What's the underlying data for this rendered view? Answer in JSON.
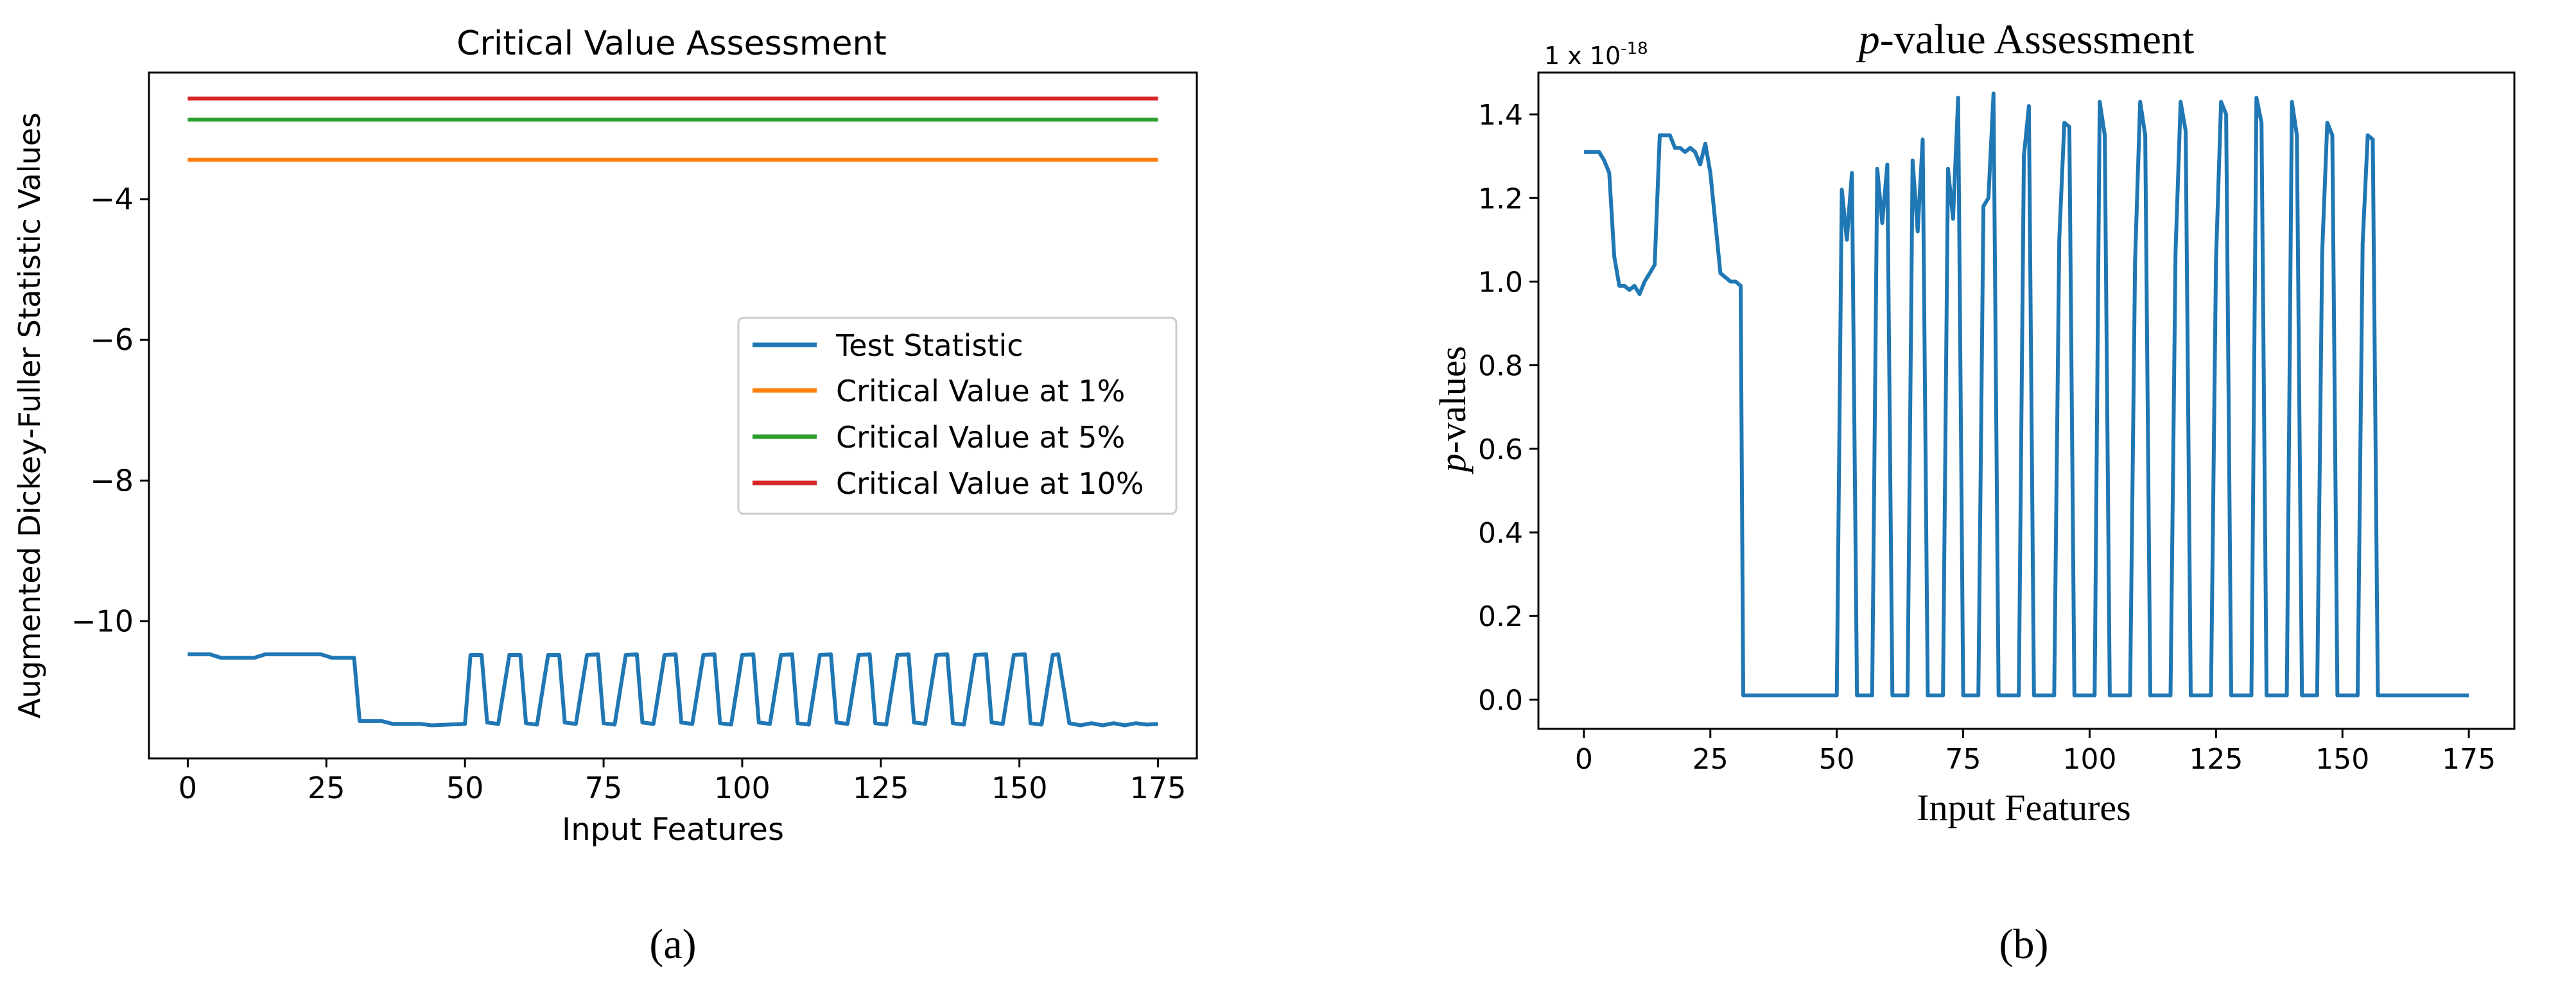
{
  "chart_data": [
    {
      "type": "line",
      "panel_label": "(a)",
      "title": "Critical Value Assessment",
      "xlabel": "Input Features",
      "ylabel": "Augmented Dickey-Fuller Statistic Values",
      "xlim": [
        -7,
        182
      ],
      "ylim": [
        -11.95,
        -2.2
      ],
      "xticks": [
        0,
        25,
        50,
        75,
        100,
        125,
        150,
        175
      ],
      "yticks": [
        -10,
        -8,
        -6,
        -4
      ],
      "xtick_labels": [
        "0",
        "25",
        "50",
        "75",
        "100",
        "125",
        "150",
        "175"
      ],
      "ytick_labels": [
        "−10",
        "−8",
        "−6",
        "−4"
      ],
      "legend_position": "center-right",
      "series": [
        {
          "name": "Test Statistic",
          "color": "#1f77b4",
          "points": [
            [
              0,
              -10.47
            ],
            [
              4,
              -10.47
            ],
            [
              6,
              -10.52
            ],
            [
              12,
              -10.52
            ],
            [
              14,
              -10.47
            ],
            [
              24,
              -10.47
            ],
            [
              26,
              -10.52
            ],
            [
              30,
              -10.52
            ],
            [
              31,
              -11.42
            ],
            [
              35,
              -11.42
            ],
            [
              37,
              -11.46
            ],
            [
              42,
              -11.46
            ],
            [
              44,
              -11.48
            ],
            [
              50,
              -11.46
            ],
            [
              51,
              -10.48
            ],
            [
              53,
              -10.48
            ],
            [
              54,
              -11.44
            ],
            [
              56,
              -11.46
            ],
            [
              58,
              -10.48
            ],
            [
              60,
              -10.48
            ],
            [
              61,
              -11.45
            ],
            [
              63,
              -11.47
            ],
            [
              65,
              -10.48
            ],
            [
              67,
              -10.48
            ],
            [
              68,
              -11.44
            ],
            [
              70,
              -11.46
            ],
            [
              72,
              -10.48
            ],
            [
              74,
              -10.47
            ],
            [
              75,
              -11.45
            ],
            [
              77,
              -11.47
            ],
            [
              79,
              -10.48
            ],
            [
              81,
              -10.47
            ],
            [
              82,
              -11.44
            ],
            [
              84,
              -11.46
            ],
            [
              86,
              -10.48
            ],
            [
              88,
              -10.47
            ],
            [
              89,
              -11.44
            ],
            [
              91,
              -11.46
            ],
            [
              93,
              -10.48
            ],
            [
              95,
              -10.47
            ],
            [
              96,
              -11.45
            ],
            [
              98,
              -11.47
            ],
            [
              100,
              -10.48
            ],
            [
              102,
              -10.47
            ],
            [
              103,
              -11.44
            ],
            [
              105,
              -11.46
            ],
            [
              107,
              -10.48
            ],
            [
              109,
              -10.47
            ],
            [
              110,
              -11.45
            ],
            [
              112,
              -11.47
            ],
            [
              114,
              -10.48
            ],
            [
              116,
              -10.47
            ],
            [
              117,
              -11.44
            ],
            [
              119,
              -11.46
            ],
            [
              121,
              -10.48
            ],
            [
              123,
              -10.47
            ],
            [
              124,
              -11.45
            ],
            [
              126,
              -11.47
            ],
            [
              128,
              -10.48
            ],
            [
              130,
              -10.47
            ],
            [
              131,
              -11.44
            ],
            [
              133,
              -11.46
            ],
            [
              135,
              -10.48
            ],
            [
              137,
              -10.47
            ],
            [
              138,
              -11.45
            ],
            [
              140,
              -11.47
            ],
            [
              142,
              -10.48
            ],
            [
              144,
              -10.47
            ],
            [
              145,
              -11.44
            ],
            [
              147,
              -11.46
            ],
            [
              149,
              -10.48
            ],
            [
              151,
              -10.47
            ],
            [
              152,
              -11.45
            ],
            [
              154,
              -11.47
            ],
            [
              156,
              -10.48
            ],
            [
              157,
              -10.47
            ],
            [
              159,
              -11.45
            ],
            [
              161,
              -11.48
            ],
            [
              163,
              -11.45
            ],
            [
              165,
              -11.48
            ],
            [
              167,
              -11.45
            ],
            [
              169,
              -11.48
            ],
            [
              171,
              -11.45
            ],
            [
              173,
              -11.47
            ],
            [
              175,
              -11.46
            ]
          ]
        },
        {
          "name": "Critical Value at 1%",
          "color": "#ff7f0e",
          "points": [
            [
              0,
              -3.44
            ],
            [
              175,
              -3.44
            ]
          ]
        },
        {
          "name": "Critical Value at 5%",
          "color": "#2ca02c",
          "points": [
            [
              0,
              -2.87
            ],
            [
              175,
              -2.87
            ]
          ]
        },
        {
          "name": "Critical Value at 10%",
          "color": "#d62728",
          "points": [
            [
              0,
              -2.57
            ],
            [
              175,
              -2.57
            ]
          ]
        }
      ]
    },
    {
      "type": "line",
      "panel_label": "(b)",
      "title_italic": "p",
      "title_rest": "-value Assessment",
      "scale_label": "1 x 10",
      "scale_exponent": "-18",
      "xlabel": "Input Features",
      "ylabel_italic": "p",
      "ylabel_rest": "-values",
      "xlim": [
        -9,
        184
      ],
      "ylim": [
        -0.07,
        1.5
      ],
      "xticks": [
        0,
        25,
        50,
        75,
        100,
        125,
        150,
        175
      ],
      "yticks": [
        0.0,
        0.2,
        0.4,
        0.6,
        0.8,
        1.0,
        1.2,
        1.4
      ],
      "xtick_labels": [
        "0",
        "25",
        "50",
        "75",
        "100",
        "125",
        "150",
        "175"
      ],
      "ytick_labels": [
        "0.0",
        "0.2",
        "0.4",
        "0.6",
        "0.8",
        "1.0",
        "1.2",
        "1.4"
      ],
      "series": [
        {
          "name": "p-values",
          "color": "#1f77b4",
          "points": [
            [
              0,
              1.31
            ],
            [
              3,
              1.31
            ],
            [
              4,
              1.29
            ],
            [
              5,
              1.26
            ],
            [
              6,
              1.06
            ],
            [
              7,
              0.99
            ],
            [
              8,
              0.99
            ],
            [
              9,
              0.98
            ],
            [
              10,
              0.99
            ],
            [
              11,
              0.97
            ],
            [
              12,
              1.0
            ],
            [
              13,
              1.02
            ],
            [
              14,
              1.04
            ],
            [
              15,
              1.35
            ],
            [
              16,
              1.35
            ],
            [
              17,
              1.35
            ],
            [
              18,
              1.32
            ],
            [
              19,
              1.32
            ],
            [
              20,
              1.31
            ],
            [
              21,
              1.32
            ],
            [
              22,
              1.31
            ],
            [
              23,
              1.28
            ],
            [
              24,
              1.33
            ],
            [
              25,
              1.26
            ],
            [
              26,
              1.14
            ],
            [
              27,
              1.02
            ],
            [
              28,
              1.01
            ],
            [
              29,
              1.0
            ],
            [
              30,
              1.0
            ],
            [
              31,
              0.99
            ],
            [
              31.5,
              0.01
            ],
            [
              50,
              0.01
            ],
            [
              51,
              1.22
            ],
            [
              52,
              1.1
            ],
            [
              53,
              1.26
            ],
            [
              54,
              0.01
            ],
            [
              57,
              0.01
            ],
            [
              58,
              1.27
            ],
            [
              59,
              1.14
            ],
            [
              60,
              1.28
            ],
            [
              61,
              0.01
            ],
            [
              64,
              0.01
            ],
            [
              65,
              1.29
            ],
            [
              66,
              1.12
            ],
            [
              67,
              1.34
            ],
            [
              68,
              0.01
            ],
            [
              71,
              0.01
            ],
            [
              72,
              1.27
            ],
            [
              73,
              1.15
            ],
            [
              74,
              1.44
            ],
            [
              75,
              0.01
            ],
            [
              78,
              0.01
            ],
            [
              79,
              1.18
            ],
            [
              80,
              1.2
            ],
            [
              81,
              1.45
            ],
            [
              82,
              0.01
            ],
            [
              86,
              0.01
            ],
            [
              87,
              1.3
            ],
            [
              88,
              1.42
            ],
            [
              89,
              0.01
            ],
            [
              93,
              0.01
            ],
            [
              94,
              1.1
            ],
            [
              95,
              1.38
            ],
            [
              96,
              1.37
            ],
            [
              97,
              0.01
            ],
            [
              101,
              0.01
            ],
            [
              102,
              1.43
            ],
            [
              103,
              1.35
            ],
            [
              104,
              0.01
            ],
            [
              108,
              0.01
            ],
            [
              109,
              1.05
            ],
            [
              110,
              1.43
            ],
            [
              111,
              1.35
            ],
            [
              112,
              0.01
            ],
            [
              116,
              0.01
            ],
            [
              117,
              1.07
            ],
            [
              118,
              1.43
            ],
            [
              119,
              1.36
            ],
            [
              120,
              0.01
            ],
            [
              124,
              0.01
            ],
            [
              125,
              1.05
            ],
            [
              126,
              1.43
            ],
            [
              127,
              1.4
            ],
            [
              128,
              0.01
            ],
            [
              132,
              0.01
            ],
            [
              133,
              1.44
            ],
            [
              134,
              1.38
            ],
            [
              135,
              0.01
            ],
            [
              139,
              0.01
            ],
            [
              140,
              1.43
            ],
            [
              141,
              1.35
            ],
            [
              142,
              0.01
            ],
            [
              145,
              0.01
            ],
            [
              146,
              1.07
            ],
            [
              147,
              1.38
            ],
            [
              148,
              1.35
            ],
            [
              149,
              0.01
            ],
            [
              153,
              0.01
            ],
            [
              154,
              1.09
            ],
            [
              155,
              1.35
            ],
            [
              156,
              1.34
            ],
            [
              157,
              0.01
            ],
            [
              160,
              0.01
            ],
            [
              165,
              0.01
            ],
            [
              175,
              0.01
            ]
          ]
        }
      ]
    }
  ]
}
